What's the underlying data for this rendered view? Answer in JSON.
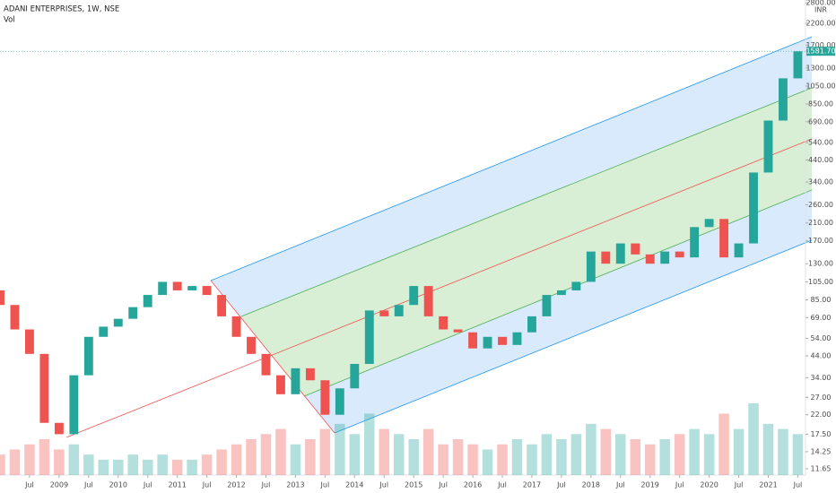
{
  "chart_data": {
    "type": "candlestick",
    "title": "ADANI ENTERPRISES, 1W, NSE",
    "indicator": "Vol",
    "currency": "INR",
    "log_scale": true,
    "up_color": "#26a69a",
    "down_color": "#ef5350",
    "x": [
      2008.0,
      2008.25,
      2008.5,
      2008.75,
      2009.0,
      2009.25,
      2009.5,
      2009.75,
      2010.0,
      2010.25,
      2010.5,
      2010.75,
      2011.0,
      2011.25,
      2011.5,
      2011.75,
      2012.0,
      2012.25,
      2012.5,
      2012.75,
      2013.0,
      2013.25,
      2013.5,
      2013.75,
      2014.0,
      2014.25,
      2014.5,
      2014.75,
      2015.0,
      2015.25,
      2015.5,
      2015.75,
      2016.0,
      2016.25,
      2016.5,
      2016.75,
      2017.0,
      2017.25,
      2017.5,
      2017.75,
      2018.0,
      2018.25,
      2018.5,
      2018.75,
      2019.0,
      2019.25,
      2019.5,
      2019.75,
      2020.0,
      2020.25,
      2020.5,
      2020.75,
      2021.0,
      2021.25,
      2021.5
    ],
    "open": [
      95,
      80,
      60,
      45,
      20,
      17.5,
      35,
      55,
      62,
      68,
      78,
      90,
      105,
      95,
      100,
      90,
      70,
      55,
      45,
      35,
      28,
      38,
      33,
      22,
      30,
      40,
      75,
      70,
      80,
      100,
      70,
      60,
      58,
      48,
      55,
      50,
      58,
      70,
      90,
      95,
      105,
      150,
      130,
      165,
      145,
      130,
      150,
      140,
      200,
      220,
      140,
      165,
      380,
      700,
      1150
    ],
    "close": [
      80,
      60,
      45,
      20,
      17.5,
      35,
      55,
      62,
      68,
      78,
      90,
      105,
      95,
      100,
      90,
      70,
      55,
      45,
      35,
      28,
      38,
      33,
      22,
      30,
      40,
      75,
      70,
      80,
      100,
      70,
      60,
      58,
      48,
      55,
      50,
      58,
      70,
      90,
      95,
      105,
      150,
      130,
      165,
      145,
      130,
      150,
      140,
      200,
      220,
      140,
      165,
      380,
      700,
      1150,
      1580
    ],
    "volume": [
      4,
      5,
      6,
      7,
      5,
      6,
      4,
      3,
      3,
      4,
      3,
      4,
      3,
      3,
      4,
      5,
      6,
      7,
      8,
      9,
      6,
      7,
      9,
      10,
      8,
      12,
      9,
      8,
      7,
      9,
      6,
      7,
      6,
      5,
      6,
      7,
      6,
      8,
      7,
      8,
      10,
      9,
      8,
      7,
      6,
      7,
      8,
      9,
      8,
      12,
      9,
      14,
      10,
      9,
      8
    ],
    "xlim": [
      2008.0,
      2021.63
    ],
    "xticks": [
      {
        "value": 2008.5,
        "label": "Jul"
      },
      {
        "value": 2009.0,
        "label": "2009"
      },
      {
        "value": 2009.5,
        "label": "Jul"
      },
      {
        "value": 2010.0,
        "label": "2010"
      },
      {
        "value": 2010.5,
        "label": "Jul"
      },
      {
        "value": 2011.0,
        "label": "2011"
      },
      {
        "value": 2011.5,
        "label": "Jul"
      },
      {
        "value": 2012.0,
        "label": "2012"
      },
      {
        "value": 2012.5,
        "label": "Jul"
      },
      {
        "value": 2013.0,
        "label": "2013"
      },
      {
        "value": 2013.5,
        "label": "Jul"
      },
      {
        "value": 2014.0,
        "label": "2014"
      },
      {
        "value": 2014.5,
        "label": "Jul"
      },
      {
        "value": 2015.0,
        "label": "2015"
      },
      {
        "value": 2015.5,
        "label": "Jul"
      },
      {
        "value": 2016.0,
        "label": "2016"
      },
      {
        "value": 2016.5,
        "label": "Jul"
      },
      {
        "value": 2017.0,
        "label": "2017"
      },
      {
        "value": 2017.5,
        "label": "Jul"
      },
      {
        "value": 2018.0,
        "label": "2018"
      },
      {
        "value": 2018.5,
        "label": "Jul"
      },
      {
        "value": 2019.0,
        "label": "2019"
      },
      {
        "value": 2019.5,
        "label": "Jul"
      },
      {
        "value": 2020.0,
        "label": "2020"
      },
      {
        "value": 2020.5,
        "label": "Jul"
      },
      {
        "value": 2021.0,
        "label": "2021"
      },
      {
        "value": 2021.5,
        "label": "Jul"
      }
    ],
    "ylim": [
      11.65,
      2800
    ],
    "yticks": [
      {
        "value": 11.65,
        "label": "11.65"
      },
      {
        "value": 14.25,
        "label": "14.25"
      },
      {
        "value": 17.5,
        "label": "17.50"
      },
      {
        "value": 22,
        "label": "22.00"
      },
      {
        "value": 27,
        "label": "27.00"
      },
      {
        "value": 34,
        "label": "34.00"
      },
      {
        "value": 44,
        "label": "44.00"
      },
      {
        "value": 54,
        "label": "54.00"
      },
      {
        "value": 69,
        "label": "69.00"
      },
      {
        "value": 85,
        "label": "85.00"
      },
      {
        "value": 105,
        "label": "105.00"
      },
      {
        "value": 130,
        "label": "130.00"
      },
      {
        "value": 170,
        "label": "170.00"
      },
      {
        "value": 210,
        "label": "210.00"
      },
      {
        "value": 260,
        "label": "260.00"
      },
      {
        "value": 340,
        "label": "340.00"
      },
      {
        "value": 440,
        "label": "440.00"
      },
      {
        "value": 540,
        "label": "540.00"
      },
      {
        "value": 690,
        "label": "690.00"
      },
      {
        "value": 850,
        "label": "850.00"
      },
      {
        "value": 1050,
        "label": "1050.00"
      },
      {
        "value": 1300,
        "label": "1300.00"
      },
      {
        "value": 1700,
        "label": "1700.00"
      },
      {
        "value": 2200,
        "label": "2200.00"
      },
      {
        "value": 2800,
        "label": "2800.00"
      }
    ],
    "last_price": {
      "value": 1581.7,
      "label": "1581.70"
    }
  }
}
